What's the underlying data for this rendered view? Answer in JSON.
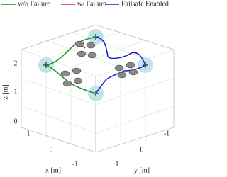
{
  "legend": [
    {
      "name": "w/o Failure",
      "color": "#1a8a1a"
    },
    {
      "name": "w/ Failure",
      "color": "#e02020"
    },
    {
      "name": "Failsafe Enabled",
      "color": "#1020c8"
    }
  ],
  "axes": {
    "z": {
      "label": "z [m]",
      "ticks": [
        "2",
        "1",
        "0"
      ]
    },
    "x": {
      "label": "x [m]",
      "ticks": [
        "1",
        "0",
        "-1"
      ]
    },
    "y": {
      "label": "y [m]",
      "ticks": [
        "-1",
        "0",
        "1"
      ]
    }
  }
}
